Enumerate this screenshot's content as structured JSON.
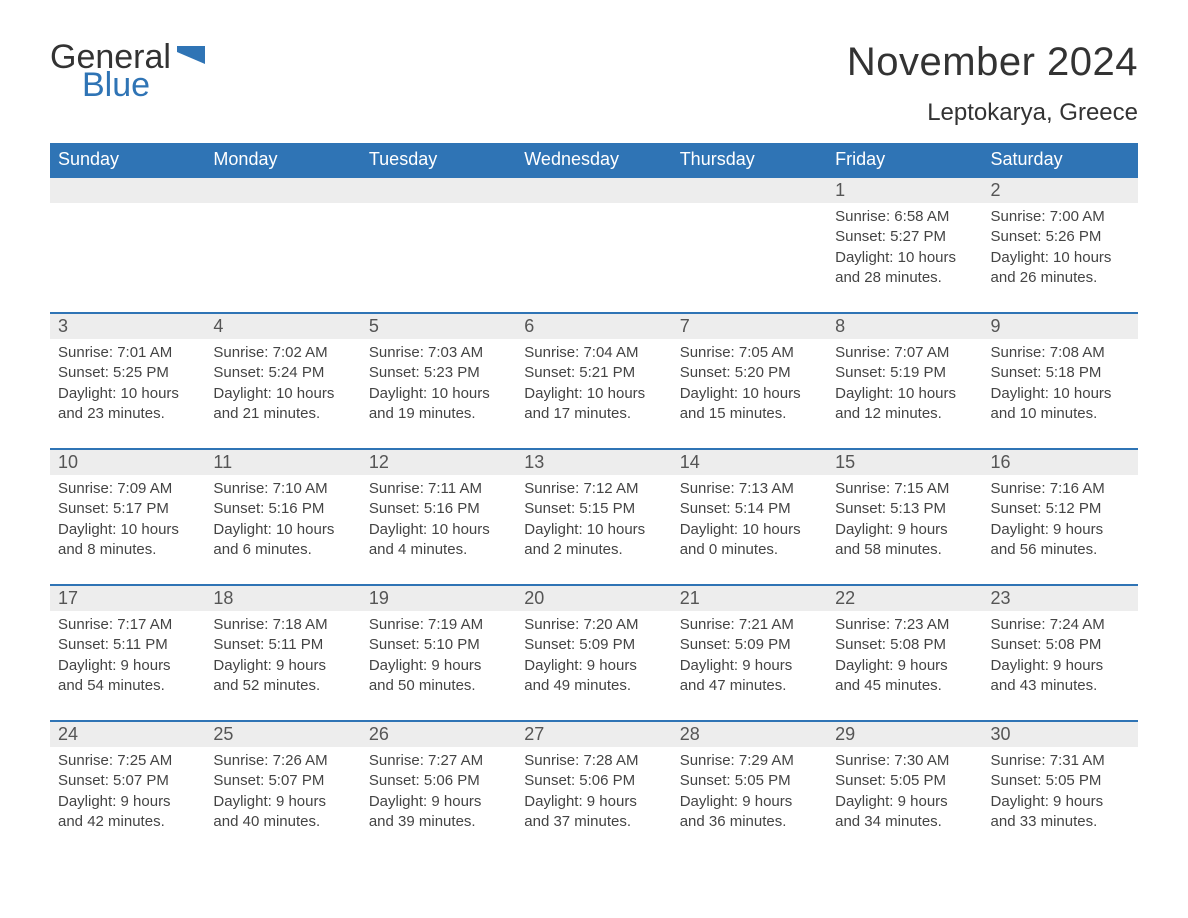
{
  "logo": {
    "general": "General",
    "blue": "Blue",
    "flag_color": "#2f74b5"
  },
  "header": {
    "month_title": "November 2024",
    "location": "Leptokarya, Greece"
  },
  "style": {
    "header_bg": "#2f74b5",
    "header_text": "#ffffff",
    "dayhead_bg": "#ededed",
    "dayhead_text": "#555555",
    "body_text": "#444444",
    "week_border": "#2f74b5",
    "page_bg": "#ffffff",
    "title_fontsize": 40,
    "location_fontsize": 24,
    "weekday_fontsize": 18,
    "cell_fontsize": 15
  },
  "weekdays": [
    "Sunday",
    "Monday",
    "Tuesday",
    "Wednesday",
    "Thursday",
    "Friday",
    "Saturday"
  ],
  "weeks": [
    [
      null,
      null,
      null,
      null,
      null,
      {
        "n": "1",
        "sunrise": "6:58 AM",
        "sunset": "5:27 PM",
        "daylight": "10 hours and 28 minutes."
      },
      {
        "n": "2",
        "sunrise": "7:00 AM",
        "sunset": "5:26 PM",
        "daylight": "10 hours and 26 minutes."
      }
    ],
    [
      {
        "n": "3",
        "sunrise": "7:01 AM",
        "sunset": "5:25 PM",
        "daylight": "10 hours and 23 minutes."
      },
      {
        "n": "4",
        "sunrise": "7:02 AM",
        "sunset": "5:24 PM",
        "daylight": "10 hours and 21 minutes."
      },
      {
        "n": "5",
        "sunrise": "7:03 AM",
        "sunset": "5:23 PM",
        "daylight": "10 hours and 19 minutes."
      },
      {
        "n": "6",
        "sunrise": "7:04 AM",
        "sunset": "5:21 PM",
        "daylight": "10 hours and 17 minutes."
      },
      {
        "n": "7",
        "sunrise": "7:05 AM",
        "sunset": "5:20 PM",
        "daylight": "10 hours and 15 minutes."
      },
      {
        "n": "8",
        "sunrise": "7:07 AM",
        "sunset": "5:19 PM",
        "daylight": "10 hours and 12 minutes."
      },
      {
        "n": "9",
        "sunrise": "7:08 AM",
        "sunset": "5:18 PM",
        "daylight": "10 hours and 10 minutes."
      }
    ],
    [
      {
        "n": "10",
        "sunrise": "7:09 AM",
        "sunset": "5:17 PM",
        "daylight": "10 hours and 8 minutes."
      },
      {
        "n": "11",
        "sunrise": "7:10 AM",
        "sunset": "5:16 PM",
        "daylight": "10 hours and 6 minutes."
      },
      {
        "n": "12",
        "sunrise": "7:11 AM",
        "sunset": "5:16 PM",
        "daylight": "10 hours and 4 minutes."
      },
      {
        "n": "13",
        "sunrise": "7:12 AM",
        "sunset": "5:15 PM",
        "daylight": "10 hours and 2 minutes."
      },
      {
        "n": "14",
        "sunrise": "7:13 AM",
        "sunset": "5:14 PM",
        "daylight": "10 hours and 0 minutes."
      },
      {
        "n": "15",
        "sunrise": "7:15 AM",
        "sunset": "5:13 PM",
        "daylight": "9 hours and 58 minutes."
      },
      {
        "n": "16",
        "sunrise": "7:16 AM",
        "sunset": "5:12 PM",
        "daylight": "9 hours and 56 minutes."
      }
    ],
    [
      {
        "n": "17",
        "sunrise": "7:17 AM",
        "sunset": "5:11 PM",
        "daylight": "9 hours and 54 minutes."
      },
      {
        "n": "18",
        "sunrise": "7:18 AM",
        "sunset": "5:11 PM",
        "daylight": "9 hours and 52 minutes."
      },
      {
        "n": "19",
        "sunrise": "7:19 AM",
        "sunset": "5:10 PM",
        "daylight": "9 hours and 50 minutes."
      },
      {
        "n": "20",
        "sunrise": "7:20 AM",
        "sunset": "5:09 PM",
        "daylight": "9 hours and 49 minutes."
      },
      {
        "n": "21",
        "sunrise": "7:21 AM",
        "sunset": "5:09 PM",
        "daylight": "9 hours and 47 minutes."
      },
      {
        "n": "22",
        "sunrise": "7:23 AM",
        "sunset": "5:08 PM",
        "daylight": "9 hours and 45 minutes."
      },
      {
        "n": "23",
        "sunrise": "7:24 AM",
        "sunset": "5:08 PM",
        "daylight": "9 hours and 43 minutes."
      }
    ],
    [
      {
        "n": "24",
        "sunrise": "7:25 AM",
        "sunset": "5:07 PM",
        "daylight": "9 hours and 42 minutes."
      },
      {
        "n": "25",
        "sunrise": "7:26 AM",
        "sunset": "5:07 PM",
        "daylight": "9 hours and 40 minutes."
      },
      {
        "n": "26",
        "sunrise": "7:27 AM",
        "sunset": "5:06 PM",
        "daylight": "9 hours and 39 minutes."
      },
      {
        "n": "27",
        "sunrise": "7:28 AM",
        "sunset": "5:06 PM",
        "daylight": "9 hours and 37 minutes."
      },
      {
        "n": "28",
        "sunrise": "7:29 AM",
        "sunset": "5:05 PM",
        "daylight": "9 hours and 36 minutes."
      },
      {
        "n": "29",
        "sunrise": "7:30 AM",
        "sunset": "5:05 PM",
        "daylight": "9 hours and 34 minutes."
      },
      {
        "n": "30",
        "sunrise": "7:31 AM",
        "sunset": "5:05 PM",
        "daylight": "9 hours and 33 minutes."
      }
    ]
  ],
  "labels": {
    "sunrise": "Sunrise: ",
    "sunset": "Sunset: ",
    "daylight": "Daylight: "
  }
}
